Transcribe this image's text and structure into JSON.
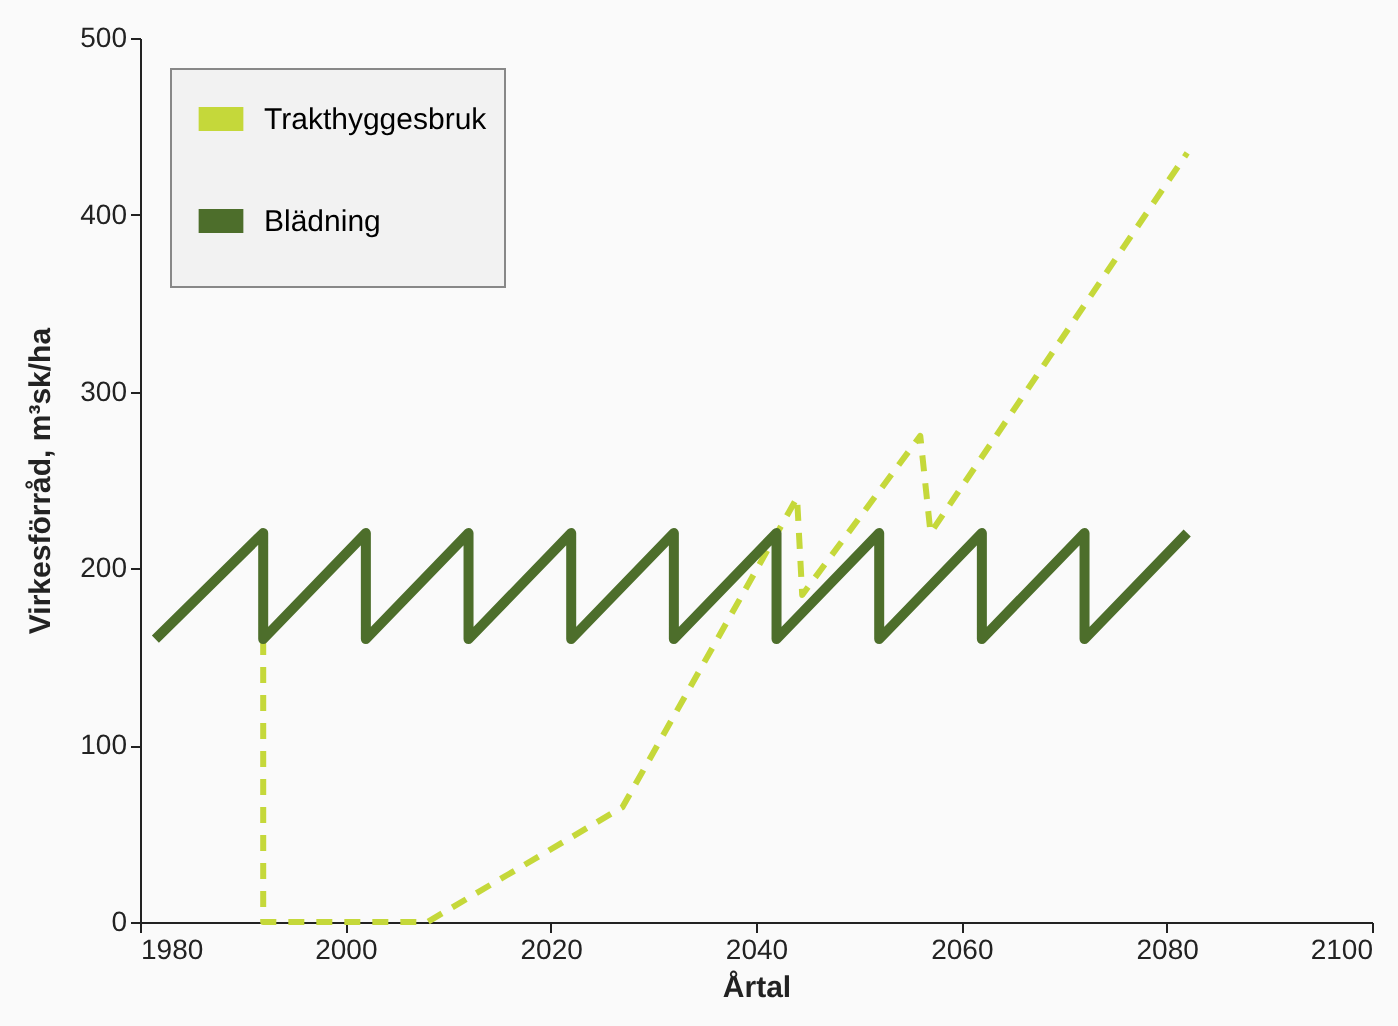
{
  "chart_data": {
    "type": "line",
    "xlabel": "Årtal",
    "ylabel": "Virkesförråd, m³sk/ha",
    "xlim": [
      1980,
      2100
    ],
    "xticks": [
      1980,
      2000,
      2020,
      2040,
      2060,
      2080,
      2100
    ],
    "ylim": [
      0,
      500
    ],
    "yticks": [
      0,
      100,
      200,
      300,
      400,
      500
    ],
    "grid": false,
    "legend": "top left",
    "series": [
      {
        "name": "Trakthyggesbruk",
        "color": "#c5d83a",
        "line_style": "dashed",
        "x": [
          1992,
          1992,
          2008,
          2027,
          2044,
          2044.5,
          2056,
          2057,
          2082
        ],
        "values": [
          160,
          0,
          0,
          65,
          240,
          185,
          275,
          220,
          435
        ]
      },
      {
        "name": "Blädning",
        "color": "#4d6e2b",
        "line_style": "solid",
        "x": [
          1981.5,
          1992,
          1992,
          2002,
          2002,
          2012,
          2012,
          2022,
          2022,
          2032,
          2032,
          2042,
          2042,
          2052,
          2052,
          2062,
          2062,
          2072,
          2072,
          2082
        ],
        "values": [
          160,
          220,
          160,
          220,
          160,
          220,
          160,
          220,
          160,
          220,
          160,
          220,
          160,
          220,
          160,
          220,
          160,
          220,
          160,
          220
        ]
      }
    ]
  }
}
